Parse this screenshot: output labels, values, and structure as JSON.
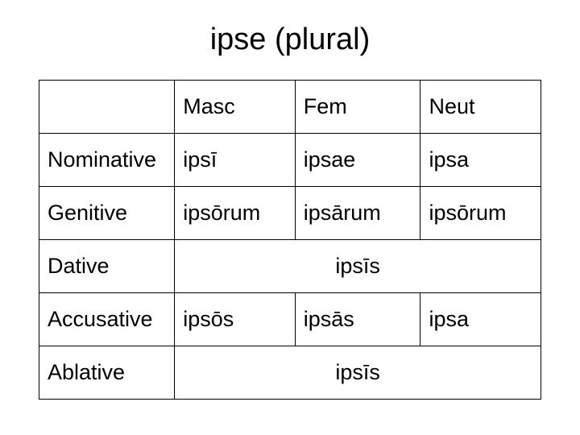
{
  "title": "ipse (plural)",
  "table": {
    "columns": [
      "",
      "Masc",
      "Fem",
      "Neut"
    ],
    "rows": [
      {
        "label": "Nominative",
        "cells": [
          "ipsī",
          "ipsae",
          "ipsa"
        ]
      },
      {
        "label": "Genitive",
        "cells": [
          "ipsōrum",
          "ipsārum",
          "ipsōrum"
        ]
      },
      {
        "label": "Dative",
        "merged": "ipsīs"
      },
      {
        "label": "Accusative",
        "cells": [
          "ipsōs",
          "ipsās",
          "ipsa"
        ]
      },
      {
        "label": "Ablative",
        "merged": "ipsīs"
      }
    ],
    "border_color": "#000000",
    "background_color": "#ffffff",
    "text_color": "#000000",
    "title_fontsize": 38,
    "cell_fontsize": 27
  }
}
